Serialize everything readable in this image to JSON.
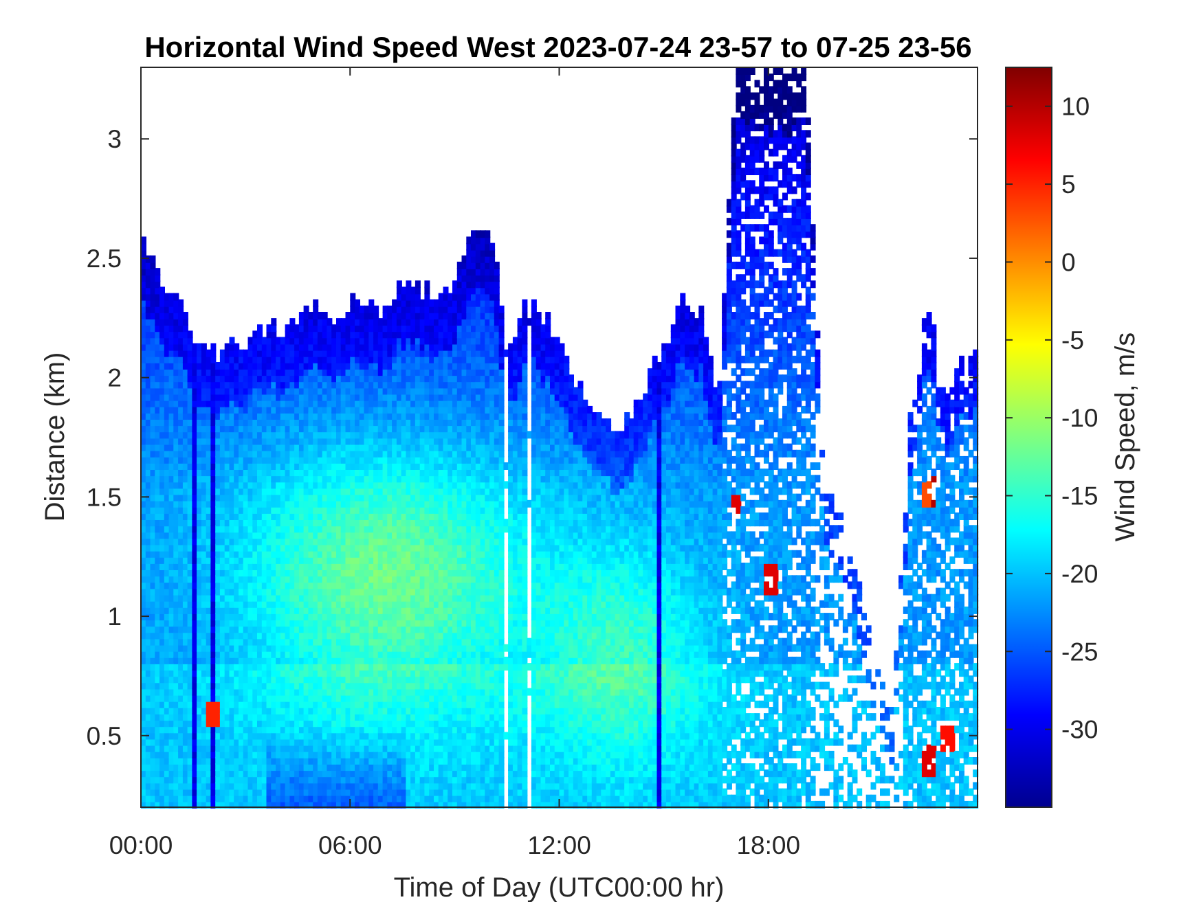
{
  "chart_data": {
    "type": "heatmap",
    "title": "Horizontal Wind Speed West 2023-07-24 23-57 to 07-25 23-56",
    "xlabel": "Time of Day (UTC00:00 hr)",
    "ylabel": "Distance (km)",
    "colorbar_label": "Wind Speed, m/s",
    "x_unit": "hours",
    "xlim": [
      0,
      24
    ],
    "ylim": [
      0.2,
      3.3
    ],
    "clim": [
      -35,
      12.5
    ],
    "colormap": "jet",
    "x_ticks": [
      {
        "value": 0,
        "label": "00:00"
      },
      {
        "value": 6,
        "label": "06:00"
      },
      {
        "value": 12,
        "label": "12:00"
      },
      {
        "value": 18,
        "label": "18:00"
      }
    ],
    "y_ticks": [
      {
        "value": 0.5,
        "label": "0.5"
      },
      {
        "value": 1,
        "label": "1"
      },
      {
        "value": 1.5,
        "label": "1.5"
      },
      {
        "value": 2,
        "label": "2"
      },
      {
        "value": 2.5,
        "label": "2.5"
      },
      {
        "value": 3,
        "label": "3"
      }
    ],
    "colorbar_ticks": [
      {
        "value": 10,
        "label": "10"
      },
      {
        "value": 5,
        "label": "5"
      },
      {
        "value": 0,
        "label": "0"
      },
      {
        "value": -5,
        "label": "-5"
      },
      {
        "value": -10,
        "label": "-10"
      },
      {
        "value": -15,
        "label": "-15"
      },
      {
        "value": -20,
        "label": "-20"
      },
      {
        "value": -25,
        "label": "-25"
      },
      {
        "value": -30,
        "label": "-30"
      }
    ],
    "data_top_km": [
      [
        0,
        2.55
      ],
      [
        0.5,
        2.4
      ],
      [
        1,
        2.3
      ],
      [
        1.5,
        2.15
      ],
      [
        2,
        2.1
      ],
      [
        2.5,
        2.1
      ],
      [
        3,
        2.15
      ],
      [
        3.5,
        2.2
      ],
      [
        4,
        2.2
      ],
      [
        4.5,
        2.25
      ],
      [
        5,
        2.3
      ],
      [
        5.5,
        2.25
      ],
      [
        6,
        2.3
      ],
      [
        6.5,
        2.25
      ],
      [
        7,
        2.3
      ],
      [
        7.5,
        2.4
      ],
      [
        8,
        2.35
      ],
      [
        8.5,
        2.3
      ],
      [
        9,
        2.45
      ],
      [
        9.5,
        2.6
      ],
      [
        10,
        2.55
      ],
      [
        10.5,
        2.1
      ],
      [
        11,
        2.35
      ],
      [
        11.5,
        2.25
      ],
      [
        12,
        2.1
      ],
      [
        12.5,
        1.95
      ],
      [
        13,
        1.85
      ],
      [
        13.5,
        1.75
      ],
      [
        14,
        1.85
      ],
      [
        14.5,
        2.0
      ],
      [
        15,
        2.1
      ],
      [
        15.5,
        2.35
      ],
      [
        16,
        2.25
      ],
      [
        16.5,
        1.9
      ],
      [
        17,
        3.3
      ],
      [
        17.5,
        3.3
      ],
      [
        18,
        3.3
      ],
      [
        18.5,
        3.3
      ],
      [
        19,
        3.3
      ],
      [
        19.5,
        1.6
      ],
      [
        20,
        1.4
      ],
      [
        20.5,
        1.2
      ],
      [
        21,
        0.8
      ],
      [
        21.5,
        0.6
      ],
      [
        22,
        1.8
      ],
      [
        22.5,
        2.3
      ],
      [
        23,
        1.9
      ],
      [
        23.5,
        2.1
      ],
      [
        24,
        2.1
      ]
    ],
    "low_speed_core": {
      "center_time": 7,
      "center_km": 1.15,
      "value": -11
    },
    "high_speed_spots": [
      {
        "time": 22.6,
        "km": 1.52,
        "value": 10
      },
      {
        "time": 22.45,
        "km": 1.5,
        "value": 3
      },
      {
        "time": 2.0,
        "km": 0.58,
        "value": 5
      },
      {
        "time": 17.0,
        "km": 1.45,
        "value": 8
      },
      {
        "time": 18.0,
        "km": 1.15,
        "value": 8
      },
      {
        "time": 22.5,
        "km": 0.38,
        "value": 8
      },
      {
        "time": 23.1,
        "km": 0.48,
        "value": 6
      }
    ]
  }
}
